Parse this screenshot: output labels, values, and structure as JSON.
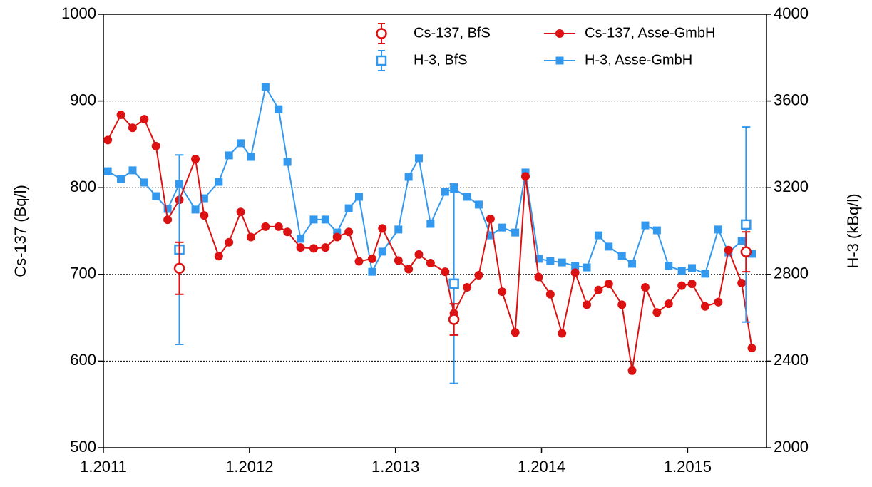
{
  "chart_data": {
    "type": "line",
    "ylabel": "Cs-137 (Bq/l)",
    "y2label": "H-3 (kBq/l)",
    "xlim": [
      2011,
      2015.54
    ],
    "xticks": [
      {
        "value": 2011,
        "label": "1.2011"
      },
      {
        "value": 2012,
        "label": "1.2012"
      },
      {
        "value": 2013,
        "label": "1.2013"
      },
      {
        "value": 2014,
        "label": "1.2014"
      },
      {
        "value": 2015,
        "label": "1.2015"
      }
    ],
    "ylim": [
      500,
      1000
    ],
    "yticks": [
      500,
      600,
      700,
      800,
      900,
      1000
    ],
    "y2lim": [
      2000,
      4000
    ],
    "y2ticks": [
      2000,
      2400,
      2800,
      3200,
      3600,
      4000
    ],
    "grid": true,
    "legend": "upper right",
    "series": [
      {
        "name": "Cs-137, BfS",
        "color": "#dd1111",
        "marker": "open-circle",
        "axis": "y",
        "x": [
          2011.52,
          2013.4,
          2015.4
        ],
        "values": [
          707,
          648,
          726
        ],
        "error": [
          30,
          18,
          23
        ]
      },
      {
        "name": "Cs-137, Asse-GmbH",
        "color": "#dd1111",
        "marker": "circle",
        "axis": "y",
        "x": [
          2011.03,
          2011.12,
          2011.2,
          2011.28,
          2011.36,
          2011.44,
          2011.52,
          2011.63,
          2011.69,
          2011.79,
          2011.86,
          2011.94,
          2012.01,
          2012.11,
          2012.2,
          2012.26,
          2012.35,
          2012.44,
          2012.52,
          2012.6,
          2012.68,
          2012.75,
          2012.84,
          2012.91,
          2013.02,
          2013.09,
          2013.16,
          2013.24,
          2013.34,
          2013.4,
          2013.49,
          2013.57,
          2013.65,
          2013.73,
          2013.82,
          2013.89,
          2013.98,
          2014.06,
          2014.14,
          2014.23,
          2014.31,
          2014.39,
          2014.46,
          2014.55,
          2014.62,
          2014.71,
          2014.79,
          2014.87,
          2014.96,
          2015.03,
          2015.12,
          2015.21,
          2015.28,
          2015.37,
          2015.44
        ],
        "values": [
          855,
          884,
          869,
          879,
          848,
          763,
          786,
          833,
          768,
          721,
          737,
          772,
          743,
          755,
          755,
          749,
          731,
          730,
          731,
          743,
          749,
          715,
          718,
          753,
          716,
          706,
          723,
          713,
          703,
          655,
          685,
          699,
          764,
          680,
          633,
          813,
          697,
          677,
          632,
          702,
          665,
          682,
          689,
          665,
          589,
          685,
          656,
          666,
          687,
          689,
          663,
          668,
          728,
          690,
          615
        ]
      },
      {
        "name": "H-3, BfS",
        "color": "#3399ee",
        "marker": "open-square",
        "axis": "y2",
        "x": [
          2011.52,
          2013.4,
          2015.4
        ],
        "values": [
          2914,
          2757,
          3030
        ],
        "error": [
          437,
          460,
          450
        ]
      },
      {
        "name": "H-3, Asse-GmbH",
        "color": "#3399ee",
        "marker": "square",
        "axis": "y2",
        "x": [
          2011.03,
          2011.12,
          2011.2,
          2011.28,
          2011.36,
          2011.44,
          2011.52,
          2011.63,
          2011.69,
          2011.79,
          2011.86,
          2011.94,
          2012.01,
          2012.11,
          2012.2,
          2012.26,
          2012.35,
          2012.44,
          2012.52,
          2012.6,
          2012.68,
          2012.75,
          2012.84,
          2012.91,
          2013.02,
          2013.09,
          2013.16,
          2013.24,
          2013.34,
          2013.4,
          2013.49,
          2013.57,
          2013.65,
          2013.73,
          2013.82,
          2013.89,
          2013.98,
          2014.06,
          2014.14,
          2014.23,
          2014.31,
          2014.39,
          2014.46,
          2014.55,
          2014.62,
          2014.71,
          2014.79,
          2014.87,
          2014.96,
          2015.03,
          2015.12,
          2015.21,
          2015.28,
          2015.37,
          2015.44
        ],
        "values": [
          3276,
          3240,
          3280,
          3224,
          3161,
          3102,
          3217,
          3099,
          3151,
          3227,
          3349,
          3405,
          3342,
          3664,
          3562,
          3319,
          2964,
          3053,
          3053,
          2993,
          3105,
          3158,
          2812,
          2905,
          3007,
          3250,
          3336,
          3033,
          3181,
          3194,
          3158,
          3122,
          2980,
          3016,
          2993,
          3270,
          2872,
          2862,
          2855,
          2839,
          2832,
          2980,
          2928,
          2885,
          2849,
          3026,
          3003,
          2839,
          2816,
          2829,
          2803,
          3007,
          2901,
          2954,
          2895
        ]
      }
    ]
  }
}
